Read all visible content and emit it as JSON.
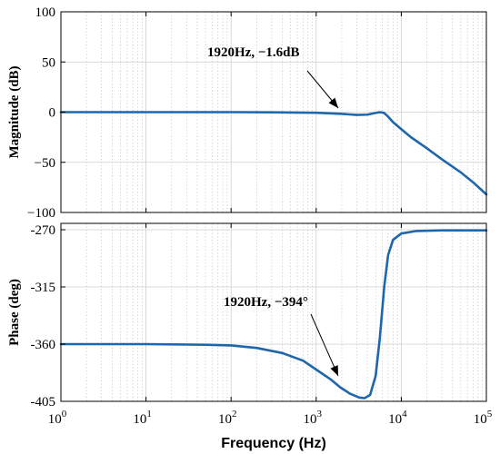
{
  "colors": {
    "curve": "#1f66ab",
    "axis": "#000000"
  },
  "chart_data": [
    {
      "type": "line",
      "xscale": "log",
      "xlim": [
        1,
        100000
      ],
      "ylim": [
        -100,
        100
      ],
      "ylabel": "Magnitude (dB)",
      "grid": true,
      "y_ticks": [
        "100",
        "50",
        "0",
        "−50",
        "−100"
      ],
      "y_tick_values": [
        100,
        50,
        0,
        -50,
        -100
      ],
      "series": [
        {
          "x": [
            1,
            10,
            100,
            300,
            1000,
            1920,
            3000,
            4000,
            5000,
            5600,
            6300,
            7000,
            8000,
            10000,
            13000,
            20000,
            30000,
            50000,
            70000,
            100000
          ],
          "y": [
            0,
            0,
            0,
            -0.2,
            -0.6,
            -1.6,
            -2.8,
            -2.5,
            -0.8,
            0,
            -0.8,
            -4.5,
            -10,
            -17,
            -25,
            -36,
            -47,
            -60,
            -70,
            -82
          ]
        }
      ],
      "annotations": [
        {
          "text": "1920Hz, −1.6dB",
          "x": 1920,
          "y": -1.6
        }
      ]
    },
    {
      "type": "line",
      "xscale": "log",
      "xlim": [
        1,
        100000
      ],
      "ylim": [
        -405,
        -265
      ],
      "xlabel": "Frequency  (Hz)",
      "ylabel": "Phase (deg)",
      "grid": true,
      "y_ticks": [
        "-270",
        "-315",
        "-360",
        "-405"
      ],
      "y_tick_values": [
        -270,
        -315,
        -360,
        -405
      ],
      "x_ticks": [
        "10",
        "10",
        "10",
        "10",
        "10",
        "10"
      ],
      "x_tick_exponents": [
        "0",
        "1",
        "2",
        "3",
        "4",
        "5"
      ],
      "x_tick_values": [
        1,
        10,
        100,
        1000,
        10000,
        100000
      ],
      "series": [
        {
          "x": [
            1,
            10,
            50,
            100,
            200,
            400,
            700,
            1000,
            1500,
            1920,
            2500,
            3200,
            3700,
            4300,
            5000,
            5600,
            6300,
            7000,
            8000,
            10000,
            15000,
            30000,
            100000
          ],
          "y": [
            -360,
            -360,
            -360.5,
            -361,
            -363,
            -367,
            -373,
            -380,
            -388,
            -394,
            -399,
            -402,
            -402.5,
            -400,
            -385,
            -355,
            -315,
            -290,
            -278,
            -273,
            -271,
            -270.5,
            -270.5
          ]
        }
      ],
      "annotations": [
        {
          "text": "1920Hz, −394°",
          "x": 1920,
          "y": -394
        }
      ]
    }
  ]
}
